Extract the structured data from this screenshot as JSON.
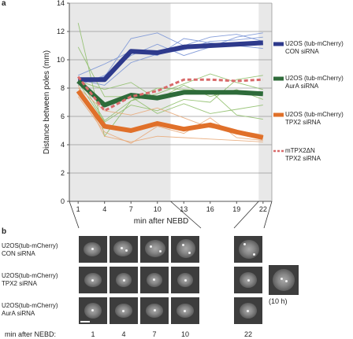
{
  "panels": {
    "a": "a",
    "b": "b"
  },
  "chart_data": {
    "type": "line",
    "ylabel": "Distance between poles (mm)",
    "xlabel": "min after NEBD",
    "ylim": [
      0,
      14
    ],
    "yticks": [
      0,
      2,
      4,
      6,
      8,
      10,
      12,
      14
    ],
    "xticks": [
      "1",
      "4",
      "7",
      "10",
      "13",
      "16",
      "19",
      "22"
    ],
    "x": [
      1,
      4,
      7,
      10,
      13,
      16,
      19,
      22
    ],
    "grid": true,
    "shaded_ranges": [
      [
        0,
        11.5
      ],
      [
        21.5,
        23
      ]
    ],
    "legend_position": "right",
    "series": [
      {
        "name": "U2OS (tub-mCherry)\nCON siRNA",
        "color": "#2e3a8c",
        "style": "solid",
        "values": [
          8.6,
          8.6,
          10.6,
          10.5,
          10.9,
          11.0,
          11.1,
          11.2
        ]
      },
      {
        "name": "U2OS (tub-mCherry)\nAurA siRNA",
        "color": "#2e6b3a",
        "style": "solid",
        "values": [
          8.5,
          6.8,
          7.5,
          7.3,
          7.7,
          7.7,
          7.7,
          7.6
        ]
      },
      {
        "name": "U2OS (tub-mCherry)\nTPX2 siRNA",
        "color": "#e0702a",
        "style": "solid",
        "values": [
          7.8,
          5.3,
          5.0,
          5.5,
          5.1,
          5.4,
          4.9,
          4.5
        ]
      },
      {
        "name": "mTPX2ΔN\nTPX2 siRNA",
        "color": "#d86a6a",
        "style": "dashed",
        "values": [
          8.8,
          6.4,
          7.4,
          7.8,
          8.6,
          8.6,
          8.5,
          8.6
        ]
      }
    ],
    "thin_traces": [
      {
        "color": "#7a95d6",
        "values": [
          8.4,
          8.8,
          11.5,
          11.9,
          11.0,
          11.6,
          11.8,
          11.3
        ]
      },
      {
        "color": "#7a95d6",
        "values": [
          8.9,
          9.7,
          10.6,
          10.3,
          11.5,
          11.2,
          11.0,
          10.8
        ]
      },
      {
        "color": "#7a95d6",
        "values": [
          8.6,
          8.2,
          9.8,
          10.4,
          10.7,
          11.3,
          11.4,
          11.6
        ]
      },
      {
        "color": "#7a95d6",
        "values": [
          8.2,
          8.9,
          10.3,
          11.1,
          10.3,
          10.9,
          11.6,
          11.9
        ]
      },
      {
        "color": "#8fbf6a",
        "values": [
          12.6,
          4.6,
          7.1,
          7.6,
          8.3,
          9.0,
          8.4,
          7.9
        ]
      },
      {
        "color": "#8fbf6a",
        "values": [
          8.5,
          7.9,
          8.4,
          7.2,
          8.2,
          7.4,
          7.9,
          7.2
        ]
      },
      {
        "color": "#8fbf6a",
        "values": [
          8.4,
          5.6,
          6.8,
          6.4,
          7.2,
          7.0,
          8.6,
          8.9
        ]
      },
      {
        "color": "#8fbf6a",
        "values": [
          10.9,
          7.4,
          7.4,
          6.2,
          6.9,
          6.2,
          6.5,
          6.8
        ]
      },
      {
        "color": "#8fbf6a",
        "values": [
          8.8,
          5.7,
          7.1,
          8.0,
          7.9,
          7.8,
          6.1,
          5.8
        ]
      },
      {
        "color": "#e8a878",
        "values": [
          8.2,
          4.6,
          4.2,
          4.6,
          4.5,
          4.4,
          4.3,
          4.2
        ]
      },
      {
        "color": "#e8a878",
        "values": [
          8.0,
          6.4,
          6.1,
          6.6,
          5.9,
          5.2,
          5.0,
          4.7
        ]
      },
      {
        "color": "#e8a878",
        "values": [
          7.4,
          4.9,
          4.1,
          5.3,
          4.8,
          5.9,
          4.5,
          4.3
        ]
      }
    ]
  },
  "panel_b": {
    "rows": [
      "U2OS(tub-mCherry)\nCON siRNA",
      "U2OS(tub-mCherry)\nTPX2 siRNA",
      "U2OS(tub-mCherry)\nAurA siRNA"
    ],
    "times_label": "min after NEBD:",
    "times": [
      "1",
      "4",
      "7",
      "10",
      "22"
    ],
    "extra_label": "(10 h)"
  }
}
